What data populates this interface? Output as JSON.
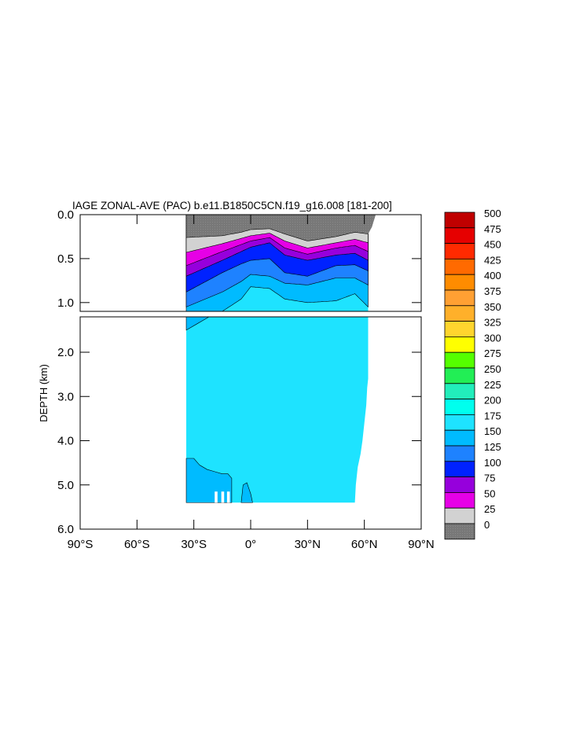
{
  "chart_data": {
    "type": "heatmap",
    "title": "IAGE ZONAL-AVE (PAC) b.e11.B1850C5CN.f19_g16.008 [181-200]",
    "ylabel": "DEPTH (km)",
    "xlabel": "",
    "xlim": [
      -90,
      90
    ],
    "ylim_upper": [
      0,
      1.1
    ],
    "ylim_lower": [
      1.2,
      6.0
    ],
    "x_ticks": [
      {
        "value": -90,
        "label": "90°S"
      },
      {
        "value": -60,
        "label": "60°S"
      },
      {
        "value": -30,
        "label": "30°S"
      },
      {
        "value": 0,
        "label": "0°"
      },
      {
        "value": 30,
        "label": "30°N"
      },
      {
        "value": 60,
        "label": "60°N"
      },
      {
        "value": 90,
        "label": "90°N"
      }
    ],
    "y_ticks_upper": [
      {
        "value": 0.0,
        "label": "0.0"
      },
      {
        "value": 0.5,
        "label": "0.5"
      },
      {
        "value": 1.0,
        "label": "1.0"
      }
    ],
    "y_ticks_lower": [
      {
        "value": 2.0,
        "label": "2.0"
      },
      {
        "value": 3.0,
        "label": "3.0"
      },
      {
        "value": 4.0,
        "label": "4.0"
      },
      {
        "value": 5.0,
        "label": "5.0"
      },
      {
        "value": 6.0,
        "label": "6.0"
      }
    ],
    "colorbar": {
      "levels": [
        "500",
        "475",
        "450",
        "425",
        "400",
        "375",
        "350",
        "325",
        "300",
        "275",
        "250",
        "225",
        "200",
        "175",
        "150",
        "125",
        "100",
        "75",
        "50",
        "25",
        "0"
      ],
      "colors": [
        "#c00000",
        "#e60000",
        "#ff2a00",
        "#ff6a00",
        "#ff8c00",
        "#ffa033",
        "#ffb02a",
        "#ffd52e",
        "#ffff00",
        "#55ff00",
        "#22ee55",
        "#22eebb",
        "#00ffee",
        "#1ee3ff",
        "#00bbff",
        "#1e82ff",
        "#0022ff",
        "#9600dc",
        "#e600e6",
        "#d2d2d2",
        "#787878"
      ]
    },
    "upper_panel_bands": [
      {
        "level_from": 0,
        "level_to": 25,
        "color": "#787878",
        "x": [
          -34,
          -15,
          -5,
          0,
          10,
          18,
          30,
          45,
          55,
          62
        ],
        "top_depth": [
          0.0,
          0.0,
          0.0,
          0.0,
          0.0,
          0.0,
          0.0,
          0.0,
          0.0,
          0.0
        ],
        "bottom_depth": [
          0.26,
          0.24,
          0.2,
          0.17,
          0.16,
          0.22,
          0.3,
          0.25,
          0.2,
          0.22
        ]
      },
      {
        "level_from": 25,
        "level_to": 50,
        "color": "#d2d2d2",
        "x": [
          -34,
          -15,
          -5,
          0,
          10,
          18,
          30,
          45,
          55,
          62
        ],
        "bottom_depth": [
          0.43,
          0.33,
          0.27,
          0.24,
          0.21,
          0.3,
          0.38,
          0.32,
          0.28,
          0.32
        ]
      },
      {
        "level_from": 50,
        "level_to": 75,
        "color": "#e600e6",
        "x": [
          -34,
          -15,
          -5,
          0,
          10,
          18,
          30,
          45,
          55,
          62
        ],
        "bottom_depth": [
          0.58,
          0.42,
          0.34,
          0.3,
          0.26,
          0.38,
          0.45,
          0.38,
          0.35,
          0.42
        ]
      },
      {
        "level_from": 75,
        "level_to": 100,
        "color": "#9600dc",
        "x": [
          -34,
          -15,
          -5,
          0,
          10,
          18,
          30,
          45,
          55,
          62
        ],
        "bottom_depth": [
          0.7,
          0.52,
          0.42,
          0.37,
          0.32,
          0.46,
          0.52,
          0.46,
          0.44,
          0.52
        ]
      },
      {
        "level_from": 100,
        "level_to": 125,
        "color": "#0022ff",
        "x": [
          -34,
          -15,
          -5,
          0,
          10,
          18,
          30,
          45,
          55,
          62
        ],
        "bottom_depth": [
          0.88,
          0.66,
          0.56,
          0.52,
          0.5,
          0.66,
          0.7,
          0.58,
          0.57,
          0.64
        ]
      },
      {
        "level_from": 125,
        "level_to": 150,
        "color": "#1e82ff",
        "x": [
          -34,
          -15,
          -5,
          0,
          10,
          18,
          30,
          45,
          55,
          62
        ],
        "bottom_depth": [
          1.05,
          0.88,
          0.76,
          0.68,
          0.7,
          0.78,
          0.8,
          0.72,
          0.72,
          0.8
        ]
      },
      {
        "level_from": 150,
        "level_to": 175,
        "color": "#00bbff",
        "x": [
          -34,
          -15,
          -5,
          0,
          10,
          18,
          30,
          45,
          55,
          62
        ],
        "bottom_depth": [
          1.1,
          1.1,
          0.96,
          0.82,
          0.84,
          0.96,
          1.0,
          0.98,
          0.9,
          1.05
        ]
      },
      {
        "level_from": 175,
        "level_to": 200,
        "color": "#1ee3ff",
        "x": [
          -34,
          62
        ],
        "bottom_depth": [
          1.1,
          1.1
        ]
      }
    ]
  }
}
